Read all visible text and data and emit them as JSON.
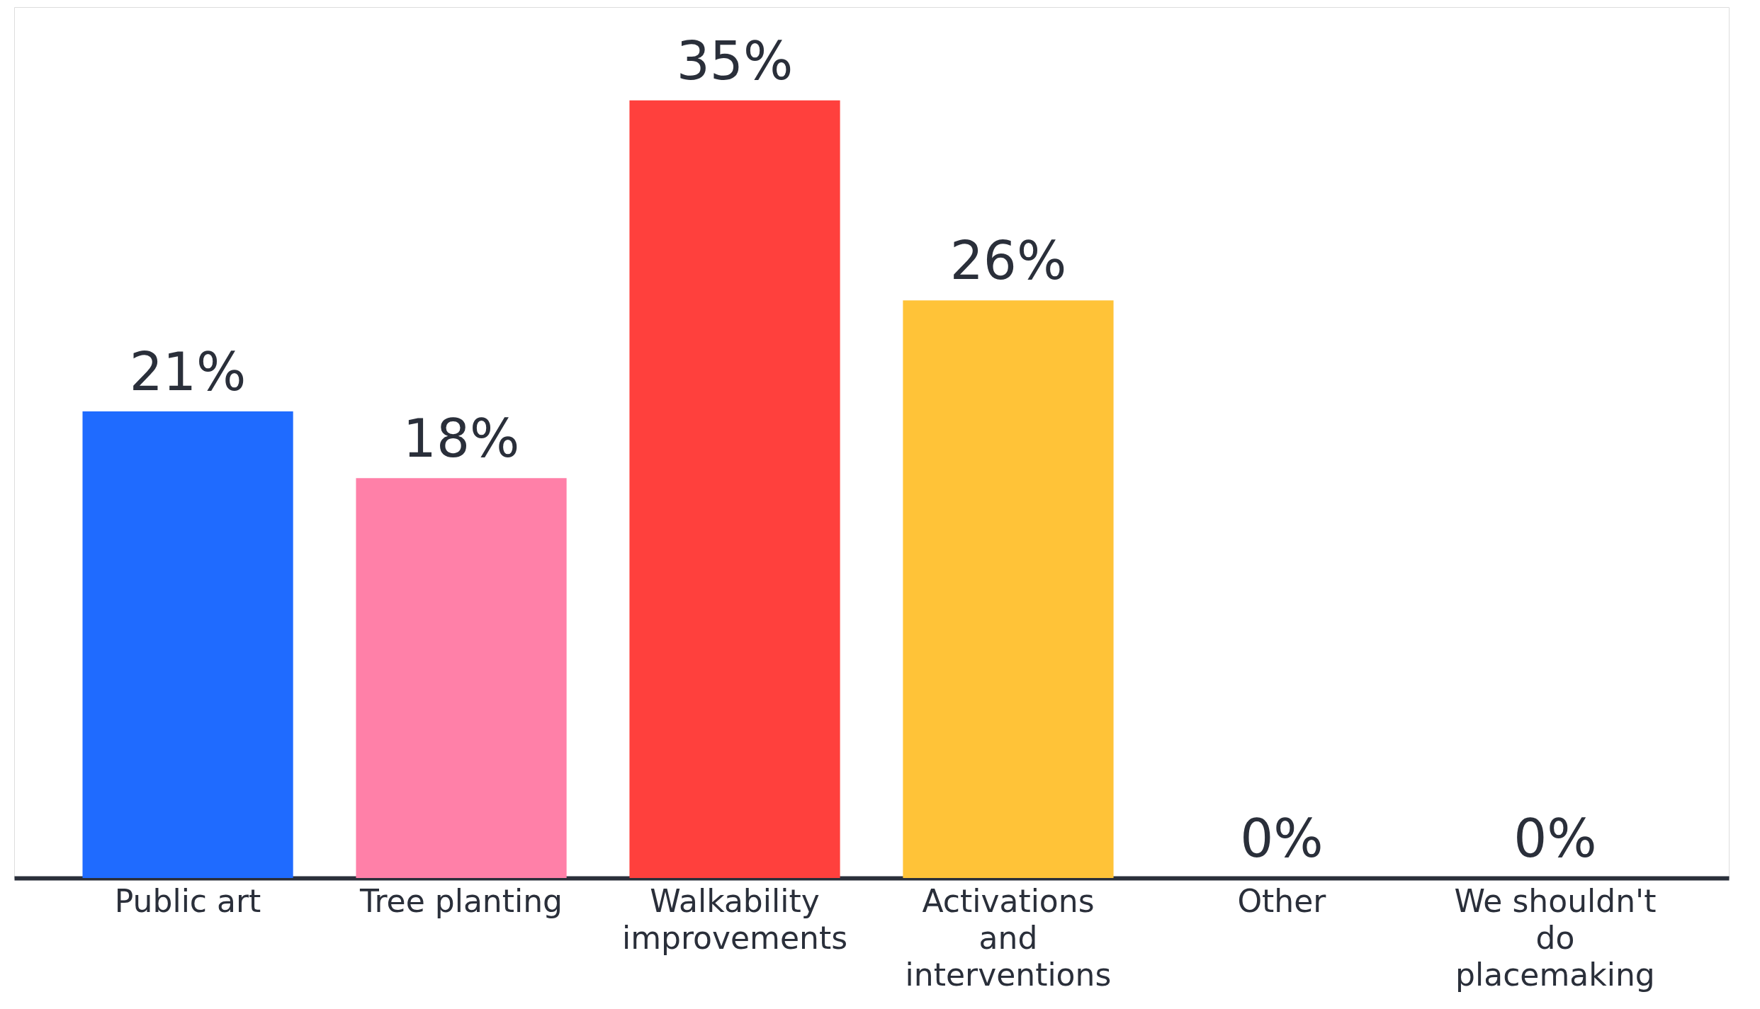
{
  "chart_data": {
    "type": "bar",
    "categories": [
      "Public art",
      "Tree planting",
      "Walkability improvements",
      "Activations and interventions",
      "Other",
      "We shouldn't do placemaking"
    ],
    "values": [
      21,
      18,
      35,
      26,
      0,
      0
    ],
    "colors": [
      "#1f6bff",
      "#ff80a8",
      "#ff403d",
      "#ffc338",
      "#999999",
      "#999999"
    ],
    "value_labels": [
      "21%",
      "18%",
      "35%",
      "26%",
      "0%",
      "0%"
    ]
  }
}
